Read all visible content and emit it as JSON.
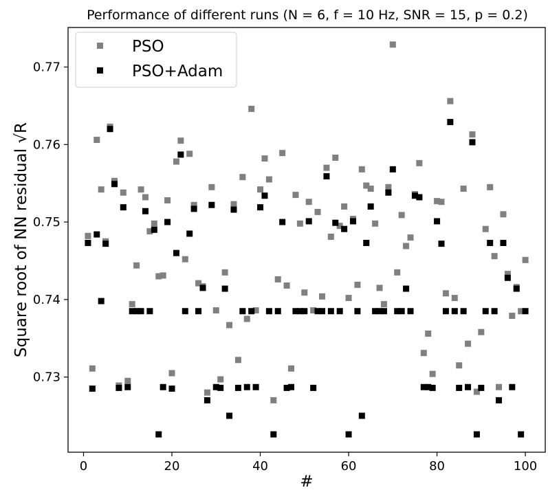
{
  "chart_data": {
    "type": "scatter",
    "title": "Performance of different runs (N = 6, f = 10 Hz, SNR = 15, p = 0.2)",
    "xlabel": "#",
    "ylabel": "Square root of NN residual √R",
    "xlim": [
      -3.5,
      104.5
    ],
    "ylim": [
      0.7203,
      0.7751
    ],
    "xticks": [
      0,
      20,
      40,
      60,
      80,
      100
    ],
    "yticks": [
      0.73,
      0.74,
      0.75,
      0.76,
      0.77
    ],
    "xtick_labels": [
      "0",
      "20",
      "40",
      "60",
      "80",
      "100"
    ],
    "ytick_labels": [
      "0.73",
      "0.74",
      "0.75",
      "0.76",
      "0.77"
    ],
    "grid": false,
    "legend_position": "top-left",
    "series": [
      {
        "name": "PSO",
        "color": "#808080",
        "marker": "square",
        "x": [
          1,
          2,
          3,
          4,
          5,
          6,
          7,
          8,
          9,
          10,
          11,
          12,
          13,
          14,
          15,
          16,
          17,
          18,
          19,
          20,
          21,
          22,
          23,
          24,
          25,
          26,
          27,
          28,
          29,
          30,
          31,
          32,
          33,
          34,
          35,
          36,
          37,
          38,
          39,
          40,
          41,
          42,
          43,
          44,
          45,
          46,
          47,
          48,
          49,
          50,
          51,
          52,
          53,
          54,
          55,
          56,
          57,
          58,
          59,
          60,
          61,
          62,
          63,
          64,
          65,
          66,
          67,
          68,
          69,
          70,
          71,
          72,
          73,
          74,
          75,
          76,
          77,
          78,
          79,
          80,
          81,
          82,
          83,
          84,
          85,
          86,
          87,
          88,
          89,
          90,
          91,
          92,
          93,
          94,
          95,
          96,
          97,
          98,
          99,
          100
        ],
        "y": [
          0.7482,
          0.7311,
          0.7606,
          0.7542,
          0.7475,
          0.7623,
          0.7553,
          0.7289,
          0.7538,
          0.7295,
          0.7394,
          0.7444,
          0.7542,
          0.7532,
          0.7488,
          0.7498,
          0.743,
          0.7431,
          0.7528,
          0.7305,
          0.7578,
          0.7605,
          0.7452,
          0.7588,
          0.7522,
          0.7421,
          0.7417,
          0.728,
          0.7545,
          0.7386,
          0.7297,
          0.7435,
          0.7367,
          0.7523,
          0.7322,
          0.7558,
          0.7375,
          0.7646,
          0.7386,
          0.7542,
          0.7582,
          0.7555,
          0.727,
          0.7426,
          0.7589,
          0.7418,
          0.7311,
          0.7535,
          0.7498,
          0.7409,
          0.7526,
          0.7386,
          0.7513,
          0.7404,
          0.757,
          0.7481,
          0.7583,
          0.7495,
          0.752,
          0.7402,
          0.7504,
          0.7419,
          0.7568,
          0.7547,
          0.7543,
          0.7498,
          0.7415,
          0.7394,
          0.7545,
          0.7729,
          0.7435,
          0.7509,
          0.7469,
          0.748,
          0.7536,
          0.7576,
          0.7331,
          0.7356,
          0.7304,
          0.7527,
          0.7526,
          0.7408,
          0.7656,
          0.7402,
          0.7315,
          0.7543,
          0.7343,
          0.7613,
          0.7281,
          0.7358,
          0.7491,
          0.7545,
          0.7456,
          0.7287,
          0.751,
          0.7433,
          0.7379,
          0.7416,
          0.7385,
          0.7451
        ]
      },
      {
        "name": "PSO+Adam",
        "color": "#000000",
        "marker": "square",
        "x": [
          1,
          2,
          3,
          4,
          5,
          6,
          7,
          8,
          9,
          10,
          11,
          12,
          13,
          14,
          15,
          16,
          17,
          18,
          19,
          20,
          21,
          22,
          23,
          24,
          25,
          26,
          27,
          28,
          29,
          30,
          31,
          32,
          33,
          34,
          35,
          36,
          37,
          38,
          39,
          40,
          41,
          42,
          43,
          44,
          45,
          46,
          47,
          48,
          49,
          50,
          51,
          52,
          53,
          54,
          55,
          56,
          57,
          58,
          59,
          60,
          61,
          62,
          63,
          64,
          65,
          66,
          67,
          68,
          69,
          70,
          71,
          72,
          73,
          74,
          75,
          76,
          77,
          78,
          79,
          80,
          81,
          82,
          83,
          84,
          85,
          86,
          87,
          88,
          89,
          90,
          91,
          92,
          93,
          94,
          95,
          96,
          97,
          98,
          99,
          100
        ],
        "y": [
          0.7473,
          0.7285,
          0.7484,
          0.7398,
          0.7472,
          0.762,
          0.7549,
          0.7286,
          0.7519,
          0.7287,
          0.7385,
          0.7385,
          0.7385,
          0.7514,
          0.7385,
          0.749,
          0.7226,
          0.7287,
          0.75,
          0.7285,
          0.746,
          0.7587,
          0.7385,
          0.7485,
          0.7517,
          0.7385,
          0.7415,
          0.727,
          0.7522,
          0.7287,
          0.7286,
          0.7414,
          0.725,
          0.7516,
          0.7286,
          0.7385,
          0.7287,
          0.7385,
          0.7287,
          0.7519,
          0.7534,
          0.7385,
          0.7226,
          0.7385,
          0.75,
          0.7286,
          0.7287,
          0.7385,
          0.7385,
          0.7385,
          0.7501,
          0.7286,
          0.7385,
          0.7385,
          0.7559,
          0.7385,
          0.7499,
          0.7385,
          0.7491,
          0.7226,
          0.7501,
          0.7385,
          0.725,
          0.7473,
          0.752,
          0.7385,
          0.7385,
          0.7385,
          0.7538,
          0.7568,
          0.7385,
          0.7385,
          0.7414,
          0.7385,
          0.7534,
          0.7532,
          0.7287,
          0.7287,
          0.7286,
          0.7501,
          0.7472,
          0.7385,
          0.7629,
          0.7385,
          0.7286,
          0.7385,
          0.7287,
          0.7603,
          0.7226,
          0.7286,
          0.7385,
          0.7473,
          0.7385,
          0.727,
          0.7473,
          0.7428,
          0.7287,
          0.7414,
          0.7226,
          0.7385
        ]
      }
    ]
  }
}
